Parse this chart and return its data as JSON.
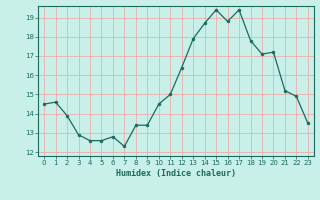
{
  "x": [
    0,
    1,
    2,
    3,
    4,
    5,
    6,
    7,
    8,
    9,
    10,
    11,
    12,
    13,
    14,
    15,
    16,
    17,
    18,
    19,
    20,
    21,
    22,
    23
  ],
  "y": [
    14.5,
    14.6,
    13.9,
    12.9,
    12.6,
    12.6,
    12.8,
    12.3,
    13.4,
    13.4,
    14.5,
    15.0,
    16.4,
    17.9,
    18.7,
    19.4,
    18.8,
    19.4,
    17.8,
    17.1,
    17.2,
    15.2,
    14.9,
    13.5
  ],
  "line_color": "#1a6b5e",
  "marker_color": "#1a6b5e",
  "bg_color": "#c8f0e8",
  "grid_color": "#f0a0a0",
  "axis_color": "#1a6b5e",
  "xlabel": "Humidex (Indice chaleur)",
  "ylim": [
    11.8,
    19.6
  ],
  "xlim": [
    -0.5,
    23.5
  ],
  "yticks": [
    12,
    13,
    14,
    15,
    16,
    17,
    18,
    19
  ],
  "xticks": [
    0,
    1,
    2,
    3,
    4,
    5,
    6,
    7,
    8,
    9,
    10,
    11,
    12,
    13,
    14,
    15,
    16,
    17,
    18,
    19,
    20,
    21,
    22,
    23
  ],
  "xtick_labels": [
    "0",
    "1",
    "2",
    "3",
    "4",
    "5",
    "6",
    "7",
    "8",
    "9",
    "10",
    "11",
    "12",
    "13",
    "14",
    "15",
    "16",
    "17",
    "18",
    "19",
    "20",
    "21",
    "22",
    "23"
  ]
}
